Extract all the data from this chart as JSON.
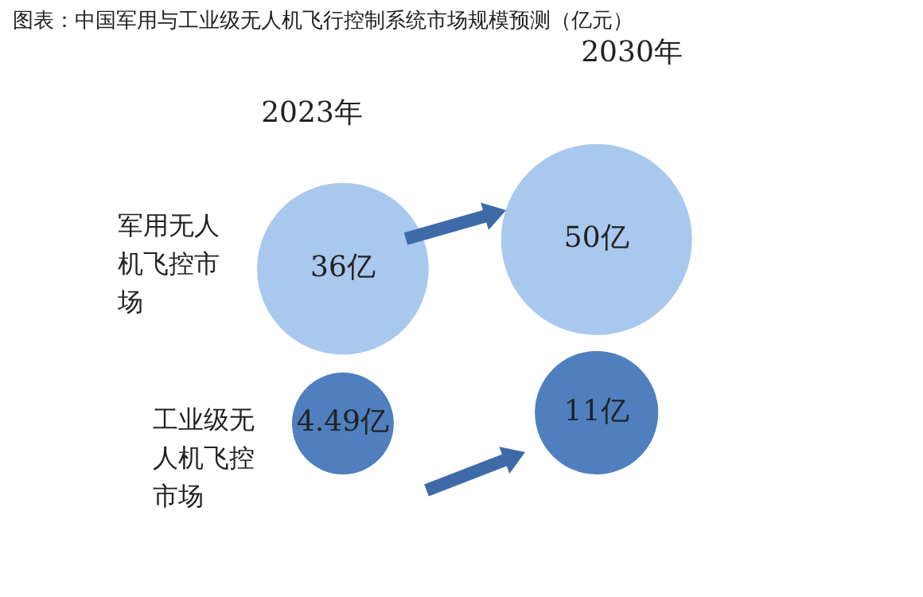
{
  "chart_data": {
    "type": "other",
    "title": "图表：中国军用与工业级无人机飞行控制系统市场规模预测（亿元）",
    "categories": [
      "2023年",
      "2030年"
    ],
    "series": [
      {
        "name": "军用无人机飞控市场",
        "color": "#a9c8ee",
        "values": [
          36,
          50
        ],
        "value_labels": [
          "36亿",
          "50亿"
        ]
      },
      {
        "name": "工业级无人机飞控市场",
        "color": "#4f7fbf",
        "values": [
          4.49,
          11
        ],
        "value_labels": [
          "4.49亿",
          "11亿"
        ]
      }
    ],
    "legend": false
  }
}
